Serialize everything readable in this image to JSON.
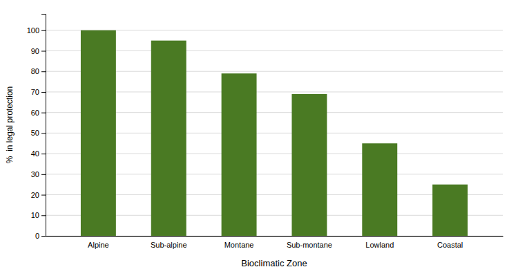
{
  "chart_data": {
    "type": "bar",
    "xlabel": "Bioclimatic Zone",
    "ylabel": "%  in legal protection",
    "categories": [
      "Alpine",
      "Sub-alpine",
      "Montane",
      "Sub-montane",
      "Lowland",
      "Coastal"
    ],
    "values": [
      100,
      95,
      79,
      69,
      45,
      25
    ],
    "color": "#4a7a23",
    "ylim": [
      0,
      108
    ],
    "yticks": [
      0,
      10,
      20,
      30,
      40,
      50,
      60,
      70,
      80,
      90,
      100
    ],
    "grid": true
  }
}
